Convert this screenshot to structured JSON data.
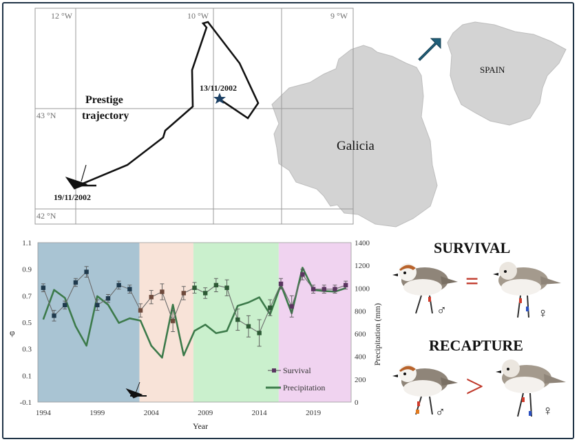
{
  "map": {
    "lon_labels": [
      "12 °W",
      "10 °W",
      "9 °W"
    ],
    "lat_labels": [
      "43 °N",
      "42 °N"
    ],
    "trajectory_title_line1": "Prestige",
    "trajectory_title_line2": "trajectory",
    "date_start": "13/11/2002",
    "date_end": "19/11/2002",
    "region_label": "Galicia",
    "country_label": "SPAIN"
  },
  "panels": {
    "survival_title": "SURVIVAL",
    "recapture_title": "RECAPTURE",
    "survival_relation": "=",
    "recapture_relation": ">",
    "male_symbol": "♂",
    "female_symbol": "♀"
  },
  "chart_data": {
    "type": "line",
    "xlabel": "Year",
    "ylabel_left": "φ",
    "ylabel_right": "Precipitation (mm)",
    "xlim": [
      1993.5,
      2022.5
    ],
    "ylim_left": [
      -0.1,
      1.1
    ],
    "ylim_right": [
      0,
      1400
    ],
    "x_ticks": [
      1994,
      1999,
      2004,
      2009,
      2014,
      2019
    ],
    "y_ticks_left": [
      -0.1,
      0.1,
      0.3,
      0.5,
      0.7,
      0.9,
      1.1
    ],
    "y_ticks_left_labels": [
      "-0.1",
      "0.1",
      "0.3",
      "0.5",
      "0.7",
      "0.9",
      "1.1"
    ],
    "y_ticks_right": [
      0,
      200,
      400,
      600,
      800,
      1000,
      1200,
      1400
    ],
    "background_periods": [
      {
        "from": 1993.5,
        "to": 2002.9,
        "color": "#a9c4d3"
      },
      {
        "from": 2002.9,
        "to": 2007.9,
        "color": "#f8e3d8"
      },
      {
        "from": 2007.9,
        "to": 2015.8,
        "color": "#caf0cd"
      },
      {
        "from": 2015.8,
        "to": 2022.5,
        "color": "#f0d3f0"
      }
    ],
    "series": [
      {
        "name": "Survival",
        "axis": "left",
        "color": "#6b6b6b",
        "x": [
          1994,
          1995,
          1996,
          1997,
          1998,
          1999,
          2000,
          2001,
          2002,
          2003,
          2004,
          2005,
          2006,
          2007,
          2008,
          2009,
          2010,
          2011,
          2012,
          2013,
          2014,
          2015,
          2016,
          2017,
          2018,
          2019,
          2020,
          2021,
          2022
        ],
        "values": [
          0.76,
          0.55,
          0.63,
          0.8,
          0.88,
          0.63,
          0.68,
          0.78,
          0.75,
          0.59,
          0.69,
          0.73,
          0.51,
          0.72,
          0.76,
          0.72,
          0.78,
          0.76,
          0.52,
          0.47,
          0.42,
          0.61,
          0.79,
          0.62,
          0.86,
          0.75,
          0.75,
          0.75,
          0.78
        ],
        "errors": [
          0.03,
          0.04,
          0.03,
          0.03,
          0.04,
          0.04,
          0.03,
          0.03,
          0.03,
          0.05,
          0.05,
          0.06,
          0.08,
          0.05,
          0.04,
          0.04,
          0.05,
          0.06,
          0.08,
          0.08,
          0.1,
          0.06,
          0.04,
          0.08,
          0.04,
          0.03,
          0.03,
          0.03,
          0.03
        ],
        "marker_colors": [
          "#1f3a4d",
          "#1f3a4d",
          "#1f3a4d",
          "#1f3a4d",
          "#1f3a4d",
          "#1f3a4d",
          "#1f3a4d",
          "#1f3a4d",
          "#1f3a4d",
          "#6e4a3c",
          "#6e4a3c",
          "#6e4a3c",
          "#6e4a3c",
          "#6e4a3c",
          "#2d5a35",
          "#2d5a35",
          "#2d5a35",
          "#2d5a35",
          "#2d5a35",
          "#2d5a35",
          "#2d5a35",
          "#2d5a35",
          "#5a3560",
          "#5a3560",
          "#5a3560",
          "#5a3560",
          "#5a3560",
          "#5a3560",
          "#5a3560"
        ]
      },
      {
        "name": "Precipitation",
        "axis": "right",
        "color": "#3c7a4a",
        "x": [
          1994,
          1995,
          1996,
          1997,
          1998,
          1999,
          2000,
          2001,
          2002,
          2003,
          2004,
          2005,
          2006,
          2007,
          2008,
          2009,
          2010,
          2011,
          2012,
          2013,
          2014,
          2015,
          2016,
          2017,
          2018,
          2019,
          2020,
          2021,
          2022
        ],
        "values": [
          725,
          985,
          915,
          665,
          495,
          930,
          855,
          695,
          735,
          715,
          495,
          390,
          855,
          410,
          625,
          680,
          605,
          625,
          845,
          875,
          920,
          770,
          1030,
          780,
          1180,
          985,
          975,
          970,
          1000
        ]
      }
    ],
    "legend_position": "bottom-right"
  }
}
